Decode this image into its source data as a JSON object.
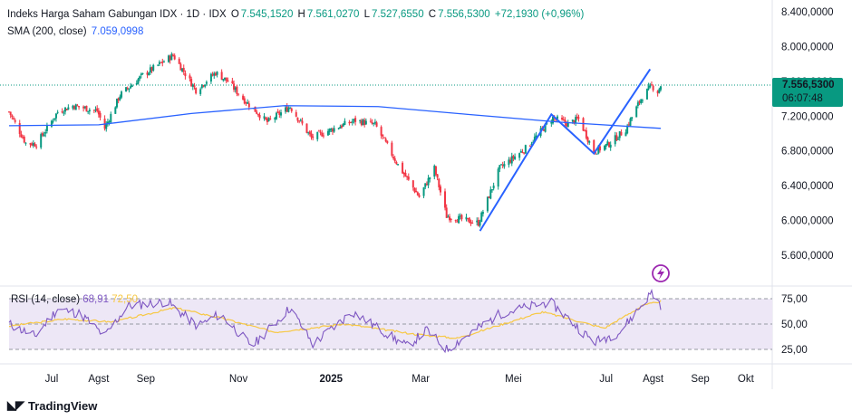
{
  "header": {
    "symbol": "Indeks Harga Saham Gabungan IDX · 1D · IDX",
    "o_label": "O",
    "o_value": "7.545,1520",
    "h_label": "H",
    "h_value": "7.561,0270",
    "l_label": "L",
    "l_value": "7.527,6550",
    "c_label": "C",
    "c_value": "7.556,5300",
    "change": "+72,1930 (+0,96%)"
  },
  "sma": {
    "label": "SMA (200, close)",
    "value": "7.059,0998"
  },
  "rsi": {
    "label": "RSI (14, close)",
    "value": "68,91",
    "ma_value": "72,50"
  },
  "price_tag": {
    "price": "7.556,5300",
    "countdown": "06:07:48"
  },
  "colors": {
    "up": "#089981",
    "down": "#f23645",
    "sma": "#2962ff",
    "pattern": "#2962ff",
    "rsi": "#7e57c2",
    "rsi_ma": "#f7c844",
    "rsi_band": "#ede7f6"
  },
  "icons": {
    "alert": "lightning-icon",
    "brand": "tradingview-logo-icon"
  },
  "footer": {
    "brand": "TradingView"
  },
  "chart_data": [
    {
      "type": "candlestick",
      "title": "Indeks Harga Saham Gabungan IDX · 1D · IDX",
      "y_axis_ticks": [
        "8.400,0000",
        "8.000,0000",
        "7.600,0000",
        "7.200,0000",
        "6.800,0000",
        "6.400,0000",
        "6.000,0000",
        "5.600,0000"
      ],
      "ylim": [
        5450,
        8500
      ],
      "x_axis_ticks": [
        "Jul",
        "Agst",
        "Sep",
        "Nov",
        "2025",
        "Mar",
        "Mei",
        "Jul",
        "Agst",
        "Sep",
        "Okt"
      ],
      "current_price": 7556.53,
      "ohlc_path_daily_close_approx": [
        {
          "date": "2024-06-03",
          "close": 7250
        },
        {
          "date": "2024-06-14",
          "close": 6890
        },
        {
          "date": "2024-06-21",
          "close": 6880
        },
        {
          "date": "2024-06-28",
          "close": 7060
        },
        {
          "date": "2024-07-05",
          "close": 7250
        },
        {
          "date": "2024-07-15",
          "close": 7320
        },
        {
          "date": "2024-07-31",
          "close": 7260
        },
        {
          "date": "2024-08-05",
          "close": 7060
        },
        {
          "date": "2024-08-15",
          "close": 7440
        },
        {
          "date": "2024-08-30",
          "close": 7670
        },
        {
          "date": "2024-09-19",
          "close": 7900
        },
        {
          "date": "2024-10-04",
          "close": 7500
        },
        {
          "date": "2024-10-17",
          "close": 7700
        },
        {
          "date": "2024-10-25",
          "close": 7600
        },
        {
          "date": "2024-11-04",
          "close": 7400
        },
        {
          "date": "2024-11-20",
          "close": 7130
        },
        {
          "date": "2024-12-05",
          "close": 7310
        },
        {
          "date": "2024-12-19",
          "close": 6950
        },
        {
          "date": "2025-01-06",
          "close": 7080
        },
        {
          "date": "2025-01-17",
          "close": 7150
        },
        {
          "date": "2025-01-30",
          "close": 7100
        },
        {
          "date": "2025-02-14",
          "close": 6640
        },
        {
          "date": "2025-02-28",
          "close": 6270
        },
        {
          "date": "2025-03-10",
          "close": 6600
        },
        {
          "date": "2025-03-18",
          "close": 6050
        },
        {
          "date": "2025-04-08",
          "close": 5970
        },
        {
          "date": "2025-04-22",
          "close": 6600
        },
        {
          "date": "2025-05-09",
          "close": 6830
        },
        {
          "date": "2025-05-27",
          "close": 7180
        },
        {
          "date": "2025-06-06",
          "close": 7110
        },
        {
          "date": "2025-06-13",
          "close": 7170
        },
        {
          "date": "2025-06-23",
          "close": 6790
        },
        {
          "date": "2025-07-03",
          "close": 6880
        },
        {
          "date": "2025-07-14",
          "close": 7050
        },
        {
          "date": "2025-07-24",
          "close": 7400
        },
        {
          "date": "2025-07-31",
          "close": 7550
        },
        {
          "date": "2025-08-04",
          "close": 7480
        },
        {
          "date": "2025-08-06",
          "close": 7556.53
        }
      ],
      "sma_200": [
        {
          "date": "2024-06-03",
          "value": 7090
        },
        {
          "date": "2024-08-01",
          "value": 7100
        },
        {
          "date": "2024-10-01",
          "value": 7230
        },
        {
          "date": "2024-12-01",
          "value": 7320
        },
        {
          "date": "2025-02-01",
          "value": 7310
        },
        {
          "date": "2025-04-01",
          "value": 7220
        },
        {
          "date": "2025-06-01",
          "value": 7130
        },
        {
          "date": "2025-08-06",
          "value": 7059.0998
        }
      ],
      "pattern_lines": [
        {
          "x": "2025-04-09",
          "y": 5880
        },
        {
          "x": "2025-05-26",
          "y": 7220
        },
        {
          "x": "2025-06-23",
          "y": 6770
        },
        {
          "x": "2025-07-30",
          "y": 7740
        }
      ]
    },
    {
      "type": "line",
      "title": "RSI (14, close)",
      "y_axis_ticks": [
        "75,00",
        "50,00",
        "25,00"
      ],
      "ylim": [
        15,
        85
      ],
      "band": [
        30,
        70
      ],
      "series": [
        {
          "name": "RSI",
          "values_path": [
            {
              "date": "2024-06-03",
              "value": 50
            },
            {
              "date": "2024-06-20",
              "value": 38
            },
            {
              "date": "2024-07-05",
              "value": 65
            },
            {
              "date": "2024-07-20",
              "value": 60
            },
            {
              "date": "2024-08-05",
              "value": 38
            },
            {
              "date": "2024-08-20",
              "value": 68
            },
            {
              "date": "2024-09-15",
              "value": 72
            },
            {
              "date": "2024-10-05",
              "value": 48
            },
            {
              "date": "2024-10-20",
              "value": 60
            },
            {
              "date": "2024-11-10",
              "value": 28
            },
            {
              "date": "2024-12-05",
              "value": 66
            },
            {
              "date": "2024-12-20",
              "value": 30
            },
            {
              "date": "2025-01-15",
              "value": 62
            },
            {
              "date": "2025-02-20",
              "value": 28
            },
            {
              "date": "2025-03-05",
              "value": 44
            },
            {
              "date": "2025-03-18",
              "value": 25
            },
            {
              "date": "2025-04-22",
              "value": 60
            },
            {
              "date": "2025-05-25",
              "value": 72
            },
            {
              "date": "2025-06-23",
              "value": 32
            },
            {
              "date": "2025-07-10",
              "value": 42
            },
            {
              "date": "2025-07-31",
              "value": 81
            },
            {
              "date": "2025-08-06",
              "value": 68.91
            }
          ]
        },
        {
          "name": "RSI MA",
          "values_path": [
            {
              "date": "2024-06-03",
              "value": 48
            },
            {
              "date": "2024-07-10",
              "value": 55
            },
            {
              "date": "2024-08-10",
              "value": 52
            },
            {
              "date": "2024-09-20",
              "value": 66
            },
            {
              "date": "2024-10-20",
              "value": 56
            },
            {
              "date": "2024-11-25",
              "value": 42
            },
            {
              "date": "2025-01-10",
              "value": 50
            },
            {
              "date": "2025-02-25",
              "value": 40
            },
            {
              "date": "2025-03-25",
              "value": 36
            },
            {
              "date": "2025-05-20",
              "value": 62
            },
            {
              "date": "2025-06-30",
              "value": 46
            },
            {
              "date": "2025-07-25",
              "value": 68
            },
            {
              "date": "2025-08-06",
              "value": 72.5
            }
          ]
        }
      ]
    }
  ]
}
